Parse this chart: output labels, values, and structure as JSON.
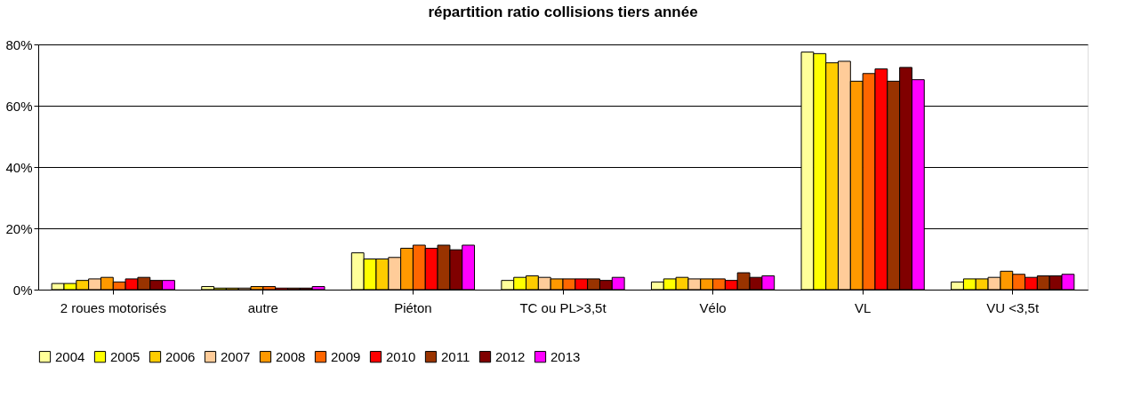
{
  "chart_data": {
    "type": "bar",
    "title": "répartition ratio collisions tiers année",
    "categories": [
      "2 roues motorisés",
      "autre",
      "Piéton",
      "TC ou PL>3,5t",
      "Vélo",
      "VL",
      "VU <3,5t"
    ],
    "series": [
      {
        "name": "2004",
        "color": "#ffff99",
        "values": [
          2,
          1,
          12,
          3,
          2.5,
          77.5,
          2.5
        ]
      },
      {
        "name": "2005",
        "color": "#ffff00",
        "values": [
          2,
          0.5,
          10,
          4,
          3.5,
          77,
          3.5
        ]
      },
      {
        "name": "2006",
        "color": "#ffcc00",
        "values": [
          3,
          0.5,
          10,
          4.5,
          4,
          74,
          3.5
        ]
      },
      {
        "name": "2007",
        "color": "#ffcc99",
        "values": [
          3.5,
          0.5,
          10.5,
          4,
          3.5,
          74.5,
          4
        ]
      },
      {
        "name": "2008",
        "color": "#ff9900",
        "values": [
          4,
          1,
          13.5,
          3.5,
          3.5,
          68,
          6
        ]
      },
      {
        "name": "2009",
        "color": "#ff6600",
        "values": [
          2.5,
          1,
          14.5,
          3.5,
          3.5,
          70.5,
          5
        ]
      },
      {
        "name": "2010",
        "color": "#ff0000",
        "values": [
          3.5,
          0.5,
          13.5,
          3.5,
          3,
          72,
          4
        ]
      },
      {
        "name": "2011",
        "color": "#993300",
        "values": [
          4,
          0.5,
          14.5,
          3.5,
          5.5,
          68,
          4.5
        ]
      },
      {
        "name": "2012",
        "color": "#800000",
        "values": [
          3,
          0.5,
          13,
          3,
          4,
          72.5,
          4.5
        ]
      },
      {
        "name": "2013",
        "color": "#ff00ff",
        "values": [
          3,
          1,
          14.5,
          4,
          4.5,
          68.5,
          5
        ]
      }
    ],
    "ylim": [
      0,
      80
    ],
    "yticks": [
      {
        "value": 0,
        "label": "0%"
      },
      {
        "value": 20,
        "label": "20%"
      },
      {
        "value": 40,
        "label": "40%"
      },
      {
        "value": 60,
        "label": "60%"
      },
      {
        "value": 80,
        "label": "80%"
      }
    ],
    "grid": "y",
    "legend": "bottom"
  }
}
